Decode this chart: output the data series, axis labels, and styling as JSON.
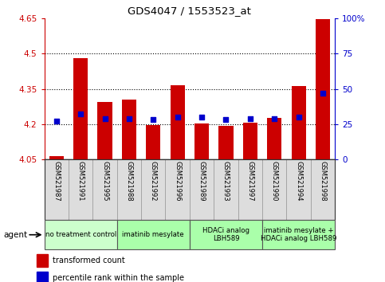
{
  "title": "GDS4047 / 1553523_at",
  "samples": [
    "GSM521987",
    "GSM521991",
    "GSM521995",
    "GSM521988",
    "GSM521992",
    "GSM521996",
    "GSM521989",
    "GSM521993",
    "GSM521997",
    "GSM521990",
    "GSM521994",
    "GSM521998"
  ],
  "transformed_count": [
    4.063,
    4.48,
    4.295,
    4.305,
    4.197,
    4.365,
    4.203,
    4.193,
    4.205,
    4.225,
    4.363,
    4.648
  ],
  "percentile_rank": [
    27,
    32,
    29,
    29,
    28,
    30,
    30,
    28,
    29,
    29,
    30,
    47
  ],
  "ylim_left": [
    4.05,
    4.65
  ],
  "ylim_right": [
    0,
    100
  ],
  "yticks_left": [
    4.05,
    4.2,
    4.35,
    4.5,
    4.65
  ],
  "ytick_labels_left": [
    "4.05",
    "4.2",
    "4.35",
    "4.5",
    "4.65"
  ],
  "yticks_right": [
    0,
    25,
    50,
    75,
    100
  ],
  "ytick_labels_right": [
    "0",
    "25",
    "50",
    "75",
    "100%"
  ],
  "hlines": [
    4.2,
    4.35,
    4.5
  ],
  "bar_color": "#cc0000",
  "dot_color": "#0000cc",
  "bar_bottom": 4.05,
  "agent_groups": [
    {
      "label": "no treatment control",
      "cols": [
        0,
        1,
        2
      ],
      "color": "#ccffcc"
    },
    {
      "label": "imatinib mesylate",
      "cols": [
        3,
        4,
        5
      ],
      "color": "#aaffaa"
    },
    {
      "label": "HDACi analog\nLBH589",
      "cols": [
        6,
        7,
        8
      ],
      "color": "#aaffaa"
    },
    {
      "label": "imatinib mesylate +\nHDACi analog LBH589",
      "cols": [
        9,
        10,
        11
      ],
      "color": "#aaffaa"
    }
  ],
  "background_color": "#ffffff",
  "sample_bg": "#dddddd",
  "sample_border": "#999999"
}
